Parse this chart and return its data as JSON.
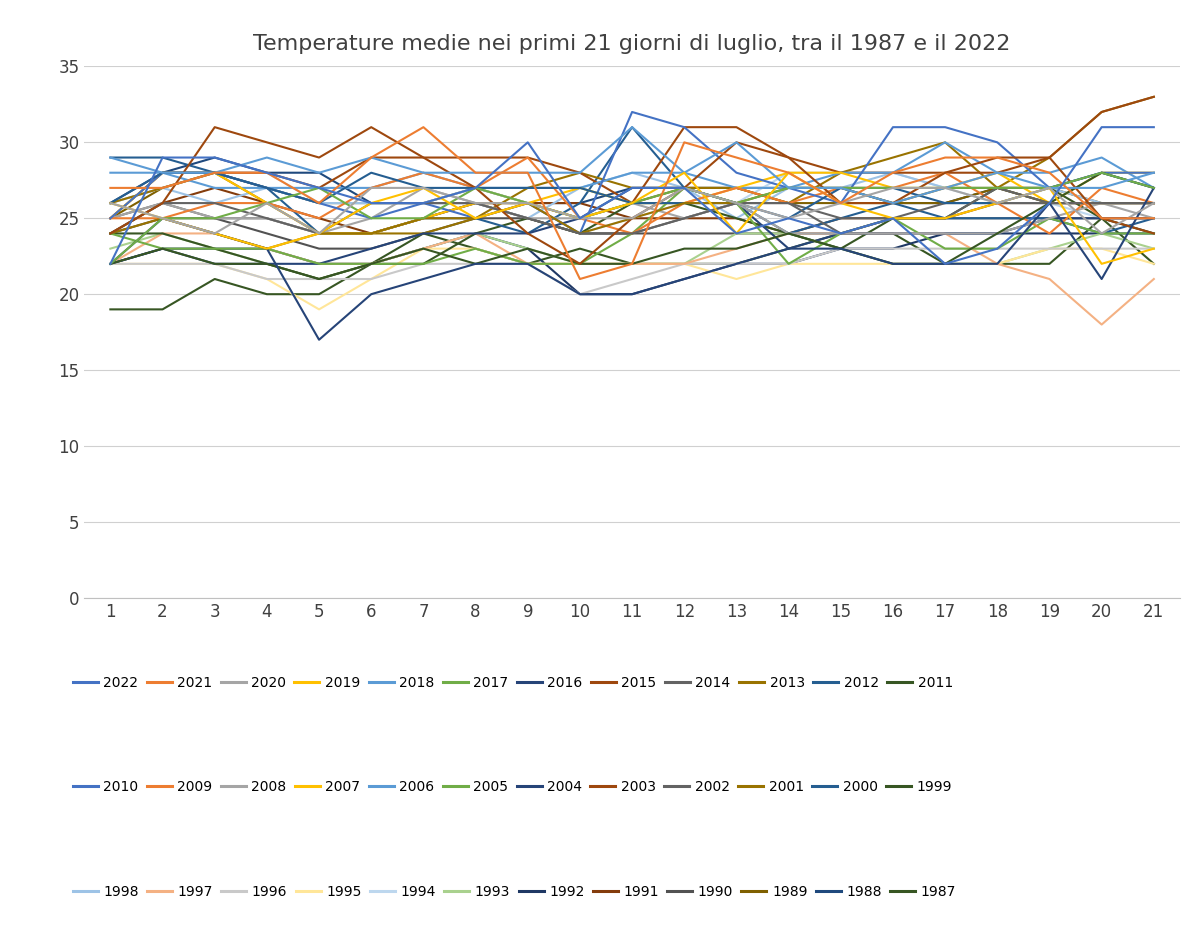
{
  "title": "Temperature medie nei primi 21 giorni di luglio, tra il 1987 e il 2022",
  "xlim": [
    1,
    21
  ],
  "ylim": [
    0,
    35
  ],
  "yticks": [
    0,
    5,
    10,
    15,
    20,
    25,
    30,
    35
  ],
  "xticks": [
    1,
    2,
    3,
    4,
    5,
    6,
    7,
    8,
    9,
    10,
    11,
    12,
    13,
    14,
    15,
    16,
    17,
    18,
    19,
    20,
    21
  ],
  "series": {
    "2022": [
      22,
      29,
      29,
      28,
      27,
      26,
      26,
      27,
      30,
      25,
      27,
      27,
      24,
      25,
      24,
      25,
      22,
      23,
      26,
      31,
      31
    ],
    "2021": [
      27,
      27,
      28,
      28,
      26,
      29,
      31,
      28,
      28,
      21,
      22,
      30,
      29,
      28,
      26,
      28,
      29,
      29,
      28,
      25,
      25
    ],
    "2020": [
      26,
      25,
      24,
      26,
      24,
      27,
      27,
      26,
      26,
      25,
      25,
      27,
      26,
      25,
      26,
      27,
      27,
      26,
      27,
      24,
      26
    ],
    "2019": [
      26,
      25,
      24,
      23,
      24,
      26,
      27,
      25,
      26,
      25,
      26,
      28,
      24,
      28,
      26,
      25,
      25,
      26,
      27,
      22,
      23
    ],
    "2018": [
      29,
      28,
      28,
      29,
      28,
      29,
      28,
      28,
      28,
      28,
      31,
      28,
      30,
      27,
      27,
      26,
      27,
      28,
      27,
      27,
      28
    ],
    "2017": [
      22,
      25,
      25,
      26,
      27,
      25,
      25,
      27,
      26,
      25,
      26,
      27,
      26,
      27,
      27,
      27,
      27,
      27,
      27,
      28,
      27
    ],
    "2016": [
      22,
      25,
      24,
      23,
      17,
      20,
      21,
      22,
      22,
      20,
      20,
      21,
      22,
      23,
      23,
      22,
      22,
      22,
      26,
      21,
      27
    ],
    "2015": [
      24,
      26,
      31,
      30,
      29,
      31,
      29,
      27,
      24,
      22,
      25,
      27,
      30,
      29,
      26,
      26,
      28,
      29,
      29,
      25,
      24
    ],
    "2014": [
      24,
      26,
      26,
      25,
      24,
      26,
      26,
      26,
      25,
      24,
      24,
      25,
      26,
      26,
      24,
      25,
      25,
      27,
      26,
      26,
      26
    ],
    "2013": [
      24,
      25,
      24,
      23,
      24,
      24,
      25,
      25,
      26,
      24,
      25,
      26,
      26,
      27,
      27,
      26,
      27,
      27,
      26,
      26,
      26
    ],
    "2012": [
      26,
      28,
      28,
      27,
      26,
      28,
      27,
      27,
      27,
      27,
      26,
      26,
      26,
      25,
      27,
      27,
      26,
      26,
      27,
      28,
      27
    ],
    "2011": [
      22,
      23,
      22,
      22,
      21,
      22,
      23,
      22,
      23,
      22,
      22,
      23,
      23,
      24,
      23,
      22,
      22,
      24,
      26,
      28,
      27
    ],
    "2010": [
      25,
      28,
      28,
      27,
      26,
      25,
      26,
      25,
      26,
      24,
      32,
      31,
      28,
      27,
      26,
      31,
      31,
      30,
      27,
      28,
      28
    ],
    "2009": [
      25,
      25,
      26,
      26,
      25,
      27,
      28,
      27,
      29,
      25,
      24,
      26,
      27,
      26,
      27,
      27,
      28,
      26,
      24,
      27,
      26
    ],
    "2008": [
      25,
      26,
      25,
      25,
      24,
      25,
      27,
      26,
      25,
      25,
      26,
      25,
      26,
      24,
      24,
      24,
      24,
      24,
      25,
      26,
      25
    ],
    "2007": [
      25,
      28,
      28,
      26,
      24,
      24,
      25,
      26,
      26,
      27,
      26,
      26,
      27,
      28,
      28,
      27,
      27,
      28,
      26,
      28,
      28
    ],
    "2006": [
      28,
      28,
      27,
      27,
      27,
      27,
      28,
      27,
      27,
      27,
      28,
      28,
      27,
      27,
      28,
      28,
      30,
      28,
      28,
      29,
      27
    ],
    "2005": [
      24,
      23,
      23,
      23,
      22,
      22,
      22,
      23,
      22,
      22,
      24,
      27,
      26,
      22,
      24,
      25,
      23,
      23,
      25,
      24,
      24
    ],
    "2004": [
      22,
      23,
      22,
      22,
      22,
      23,
      24,
      24,
      24,
      25,
      27,
      27,
      26,
      23,
      24,
      24,
      24,
      24,
      25,
      25,
      25
    ],
    "2003": [
      25,
      28,
      28,
      28,
      27,
      29,
      29,
      29,
      29,
      28,
      26,
      31,
      31,
      29,
      28,
      28,
      28,
      28,
      29,
      32,
      33
    ],
    "2002": [
      25,
      26,
      25,
      25,
      24,
      24,
      25,
      26,
      25,
      24,
      24,
      25,
      26,
      26,
      25,
      25,
      26,
      26,
      26,
      26,
      26
    ],
    "2001": [
      26,
      27,
      28,
      26,
      24,
      24,
      24,
      25,
      27,
      28,
      27,
      27,
      27,
      26,
      28,
      29,
      30,
      27,
      29,
      32,
      33
    ],
    "2000": [
      29,
      29,
      28,
      27,
      24,
      24,
      25,
      25,
      24,
      26,
      31,
      27,
      26,
      24,
      25,
      26,
      25,
      25,
      25,
      24,
      25
    ],
    "1999": [
      24,
      24,
      23,
      22,
      21,
      22,
      22,
      24,
      25,
      24,
      26,
      26,
      25,
      24,
      23,
      25,
      25,
      27,
      27,
      25,
      24
    ],
    "1998": [
      26,
      27,
      26,
      27,
      26,
      26,
      26,
      26,
      25,
      27,
      28,
      27,
      25,
      27,
      27,
      28,
      27,
      27,
      27,
      26,
      26
    ],
    "1997": [
      22,
      24,
      24,
      23,
      22,
      22,
      23,
      24,
      22,
      22,
      22,
      22,
      23,
      24,
      24,
      24,
      24,
      22,
      21,
      18,
      21
    ],
    "1996": [
      22,
      22,
      22,
      21,
      21,
      21,
      22,
      22,
      22,
      20,
      21,
      22,
      22,
      22,
      23,
      23,
      23,
      23,
      23,
      23,
      23
    ],
    "1995": [
      22,
      22,
      22,
      21,
      19,
      21,
      23,
      23,
      22,
      22,
      22,
      22,
      21,
      22,
      22,
      22,
      22,
      22,
      23,
      23,
      22
    ],
    "1994": [
      26,
      27,
      28,
      28,
      26,
      26,
      26,
      27,
      26,
      24,
      25,
      26,
      26,
      28,
      28,
      28,
      27,
      26,
      26,
      25,
      24
    ],
    "1993": [
      23,
      24,
      23,
      22,
      21,
      22,
      23,
      24,
      23,
      22,
      22,
      22,
      24,
      24,
      23,
      22,
      22,
      22,
      23,
      24,
      23
    ],
    "1992": [
      22,
      23,
      23,
      23,
      22,
      22,
      23,
      24,
      23,
      20,
      20,
      21,
      22,
      22,
      23,
      23,
      24,
      24,
      24,
      24,
      24
    ],
    "1991": [
      24,
      26,
      27,
      26,
      25,
      24,
      25,
      26,
      26,
      26,
      25,
      25,
      25,
      24,
      25,
      25,
      25,
      26,
      26,
      26,
      26
    ],
    "1990": [
      24,
      25,
      25,
      24,
      23,
      23,
      24,
      25,
      25,
      24,
      24,
      24,
      24,
      24,
      24,
      25,
      25,
      25,
      25,
      25,
      25
    ],
    "1989": [
      25,
      27,
      28,
      27,
      26,
      26,
      26,
      27,
      26,
      25,
      26,
      27,
      27,
      26,
      26,
      26,
      26,
      27,
      27,
      26,
      26
    ],
    "1988": [
      26,
      28,
      29,
      28,
      28,
      26,
      26,
      26,
      26,
      26,
      27,
      27,
      27,
      27,
      27,
      26,
      26,
      27,
      26,
      26,
      26
    ],
    "1987": [
      19,
      19,
      21,
      20,
      20,
      22,
      24,
      23,
      22,
      23,
      22,
      22,
      22,
      23,
      24,
      24,
      22,
      22,
      22,
      25,
      22
    ]
  },
  "colors": {
    "2022": "#4472C4",
    "2021": "#ED7D31",
    "2020": "#A5A5A5",
    "2019": "#FFC000",
    "2018": "#5B9BD5",
    "2017": "#70AD47",
    "2016": "#264478",
    "2015": "#9E480E",
    "2014": "#636363",
    "2013": "#997300",
    "2012": "#255E91",
    "2011": "#375623",
    "2010": "#4472C4",
    "2009": "#ED7D31",
    "2008": "#A5A5A5",
    "2007": "#FFC000",
    "2006": "#5B9BD5",
    "2005": "#70AD47",
    "2004": "#264478",
    "2003": "#9E480E",
    "2002": "#636363",
    "2001": "#997300",
    "2000": "#255E91",
    "1999": "#375623",
    "1998": "#9DC3E6",
    "1997": "#F4B183",
    "1996": "#C9C9C9",
    "1995": "#FFE699",
    "1994": "#BDD7EE",
    "1993": "#A9D18E",
    "1992": "#1F3864",
    "1991": "#843C0C",
    "1990": "#525252",
    "1989": "#7F6000",
    "1988": "#1F497D",
    "1987": "#375623"
  },
  "legend_order": [
    "2022",
    "2021",
    "2020",
    "2019",
    "2018",
    "2017",
    "2016",
    "2015",
    "2014",
    "2013",
    "2012",
    "2011",
    "2010",
    "2009",
    "2008",
    "2007",
    "2006",
    "2005",
    "2004",
    "2003",
    "2002",
    "2001",
    "2000",
    "1999",
    "1998",
    "1997",
    "1996",
    "1995",
    "1994",
    "1993",
    "1992",
    "1991",
    "1990",
    "1989",
    "1988",
    "1987"
  ],
  "linewidth": 1.5,
  "title_fontsize": 16,
  "tick_fontsize": 12,
  "legend_fontsize": 10
}
